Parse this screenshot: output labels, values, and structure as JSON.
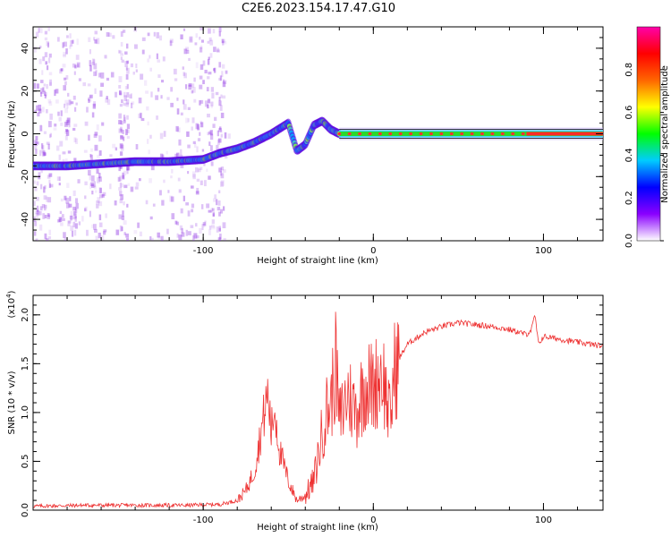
{
  "title": "C2E6.2023.154.17.47.G10",
  "chart_data": [
    {
      "type": "heatmap",
      "xlabel": "Height of straight line (km)",
      "ylabel": "Frequency (Hz)",
      "xlim": [
        -200,
        135
      ],
      "ylim": [
        -50,
        50
      ],
      "x_ticks": [
        -100,
        0,
        100
      ],
      "y_ticks": [
        -40,
        -20,
        0,
        20,
        40
      ],
      "grid": false,
      "colorbar": {
        "label": "Normalized spectral amplitude",
        "range": [
          0,
          1
        ],
        "ticks": [
          "0.0",
          "0.2",
          "0.4",
          "0.6",
          "0.8"
        ],
        "colors": [
          "#ffffff",
          "#8a00ff",
          "#0000ff",
          "#00ccff",
          "#00ff00",
          "#ffff00",
          "#ff6600",
          "#ff0000",
          "#ff00aa"
        ]
      },
      "ridge": {
        "x": [
          -200,
          -180,
          -160,
          -140,
          -120,
          -100,
          -90,
          -80,
          -70,
          -60,
          -50,
          -45,
          -40,
          -35,
          -30,
          -25,
          -20,
          0,
          20,
          50,
          80,
          100,
          135
        ],
        "y": [
          -15,
          -15,
          -14,
          -13,
          -13,
          -12,
          -9,
          -7,
          -4,
          0,
          5,
          -8,
          -5,
          4,
          6,
          2,
          0,
          0,
          0,
          0,
          0,
          0,
          0
        ]
      }
    },
    {
      "type": "line",
      "xlabel": "Height of straight line (km)",
      "ylabel": "SNR (10 * v/v)",
      "y_multiplier": "(x10",
      "y_multiplier_exp": "4",
      "y_multiplier_close": ")",
      "xlim": [
        -200,
        135
      ],
      "ylim": [
        0,
        2.2
      ],
      "x_ticks": [
        -100,
        0,
        100
      ],
      "y_ticks": [
        "0.0",
        "0.5",
        "1.0",
        "1.5",
        "2.0"
      ],
      "line_color": "#ee3333",
      "series": [
        {
          "x": [
            -200,
            -170,
            -140,
            -110,
            -90,
            -80,
            -75,
            -70,
            -65,
            -62,
            -60,
            -58,
            -55,
            -50,
            -45,
            -40,
            -35,
            -32,
            -30,
            -28,
            -25,
            -22,
            -20,
            -15,
            -10,
            -5,
            0,
            5,
            10,
            12,
            15,
            20,
            30,
            40,
            50,
            60,
            70,
            80,
            90,
            93,
            95,
            97,
            100,
            110,
            120,
            135
          ],
          "y": [
            0.04,
            0.05,
            0.05,
            0.05,
            0.06,
            0.1,
            0.2,
            0.4,
            0.9,
            1.2,
            0.8,
            1.05,
            0.6,
            0.3,
            0.1,
            0.15,
            0.3,
            0.6,
            0.8,
            1.0,
            1.1,
            1.5,
            0.9,
            1.2,
            1.0,
            1.3,
            1.25,
            1.45,
            0.9,
            1.4,
            1.55,
            1.7,
            1.82,
            1.88,
            1.92,
            1.9,
            1.88,
            1.85,
            1.8,
            1.85,
            2.0,
            1.7,
            1.78,
            1.75,
            1.72,
            1.68
          ]
        }
      ]
    }
  ]
}
